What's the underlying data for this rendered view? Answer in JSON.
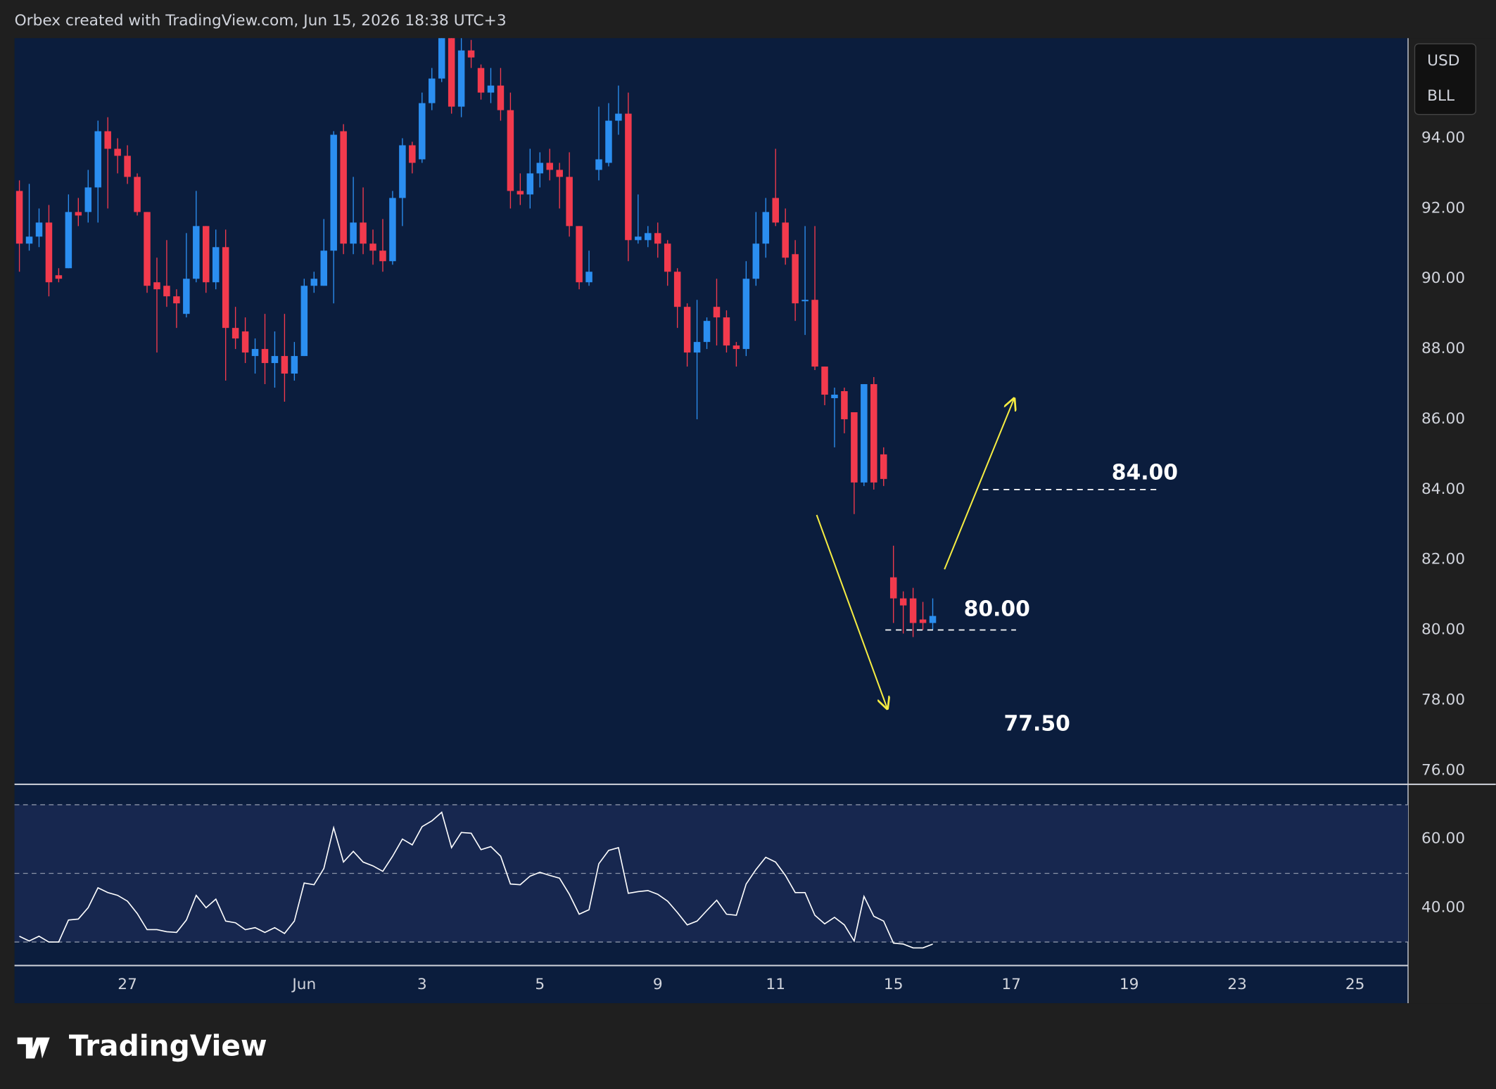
{
  "header": "Orbex created with TradingView.com, Jun 15, 2026 18:38 UTC+3",
  "currency": [
    "USD",
    "BLL"
  ],
  "logo": "TradingView",
  "chart_data": [
    {
      "type": "candlestick",
      "x": [
        0,
        1,
        2,
        3,
        4,
        5,
        6,
        7,
        8,
        9,
        10,
        11,
        12,
        13,
        14,
        15,
        16,
        17,
        18,
        19,
        20,
        21,
        22,
        23,
        24,
        25,
        26,
        27,
        28,
        29,
        30,
        31,
        32,
        33,
        34,
        35,
        36,
        37,
        38,
        39,
        40,
        41,
        42,
        43,
        44,
        45,
        46,
        47,
        48,
        49,
        50,
        51,
        52,
        53,
        54,
        55,
        56,
        57,
        58,
        59,
        60,
        61,
        62,
        63,
        64,
        65,
        66,
        67,
        68,
        69,
        70,
        71,
        72,
        73,
        74,
        75,
        76,
        77,
        78,
        79,
        80,
        81,
        82,
        83,
        84,
        85,
        86,
        87,
        88,
        89,
        90,
        91,
        92,
        93
      ],
      "open": [
        92.5,
        91.0,
        91.2,
        91.6,
        90.1,
        90.3,
        91.9,
        91.9,
        92.6,
        94.2,
        93.7,
        93.5,
        92.9,
        91.9,
        89.9,
        89.8,
        89.5,
        89.0,
        90.0,
        91.5,
        89.9,
        90.9,
        88.6,
        88.5,
        87.8,
        88.0,
        87.6,
        87.8,
        87.3,
        87.8,
        89.8,
        89.8,
        90.8,
        94.2,
        91.0,
        91.6,
        91.0,
        90.8,
        90.5,
        92.3,
        93.8,
        93.4,
        95.0,
        95.7,
        97.0,
        94.9,
        96.5,
        96.0,
        95.3,
        95.5,
        94.8,
        92.5,
        92.4,
        93.0,
        93.3,
        93.1,
        92.9,
        91.5,
        89.9,
        93.1,
        93.3,
        94.5,
        94.7,
        91.1,
        91.1,
        91.3,
        91.0,
        90.2,
        89.2,
        87.9,
        88.2,
        89.2,
        88.9,
        88.1,
        88.0,
        90.0,
        91.0,
        92.3,
        91.6,
        90.7,
        89.4,
        89.4,
        87.5,
        86.6,
        86.8,
        86.2,
        84.2,
        87.0,
        85.0,
        81.5,
        80.9,
        80.9,
        80.3,
        80.2
      ],
      "high": [
        92.8,
        92.7,
        92.0,
        92.1,
        90.3,
        92.4,
        92.3,
        93.1,
        94.5,
        94.6,
        94.0,
        93.8,
        93.0,
        91.9,
        90.6,
        91.1,
        89.7,
        91.3,
        92.5,
        91.5,
        91.4,
        91.4,
        89.2,
        88.9,
        88.3,
        89.0,
        88.5,
        89.0,
        88.2,
        90.0,
        90.2,
        91.7,
        94.2,
        94.4,
        92.9,
        92.6,
        91.4,
        91.7,
        92.5,
        94.0,
        93.9,
        95.3,
        96.0,
        97.2,
        97.0,
        96.9,
        96.8,
        96.1,
        96.0,
        96.0,
        95.3,
        93.0,
        93.7,
        93.6,
        93.7,
        93.3,
        93.6,
        91.5,
        90.8,
        94.9,
        95.0,
        95.5,
        95.3,
        92.4,
        91.5,
        91.6,
        91.1,
        90.3,
        89.3,
        89.4,
        88.9,
        90.0,
        89.1,
        88.2,
        90.5,
        91.9,
        92.3,
        93.7,
        92.0,
        91.1,
        91.5,
        91.5,
        87.5,
        86.9,
        86.9,
        86.2,
        87.0,
        87.2,
        85.2,
        82.4,
        81.1,
        81.2,
        80.8,
        80.9
      ],
      "low": [
        90.2,
        90.8,
        90.9,
        89.5,
        89.9,
        90.3,
        91.5,
        91.6,
        91.6,
        92.0,
        93.0,
        92.7,
        91.8,
        89.6,
        87.9,
        89.2,
        88.6,
        88.9,
        89.9,
        89.6,
        89.7,
        87.1,
        88.0,
        87.6,
        87.3,
        87.0,
        86.9,
        86.5,
        87.1,
        87.8,
        89.6,
        89.8,
        89.3,
        90.7,
        90.7,
        90.7,
        90.4,
        90.2,
        90.4,
        91.5,
        93.0,
        93.3,
        94.8,
        95.6,
        94.7,
        94.6,
        96.0,
        95.1,
        95.0,
        94.5,
        92.0,
        92.1,
        92.0,
        92.6,
        92.8,
        92.0,
        91.2,
        89.7,
        89.8,
        92.8,
        93.2,
        94.1,
        90.5,
        91.0,
        90.9,
        90.6,
        89.8,
        88.6,
        87.5,
        86.0,
        88.0,
        88.1,
        87.9,
        87.5,
        87.8,
        89.8,
        90.6,
        91.5,
        90.4,
        88.8,
        88.4,
        87.4,
        86.4,
        85.2,
        85.6,
        83.3,
        84.1,
        84.0,
        84.1,
        80.2,
        79.9,
        79.8,
        80.0,
        80.0
      ],
      "close": [
        91.0,
        91.2,
        91.6,
        89.9,
        90.0,
        91.9,
        91.8,
        92.6,
        94.2,
        93.7,
        93.5,
        92.9,
        91.9,
        89.8,
        89.7,
        89.5,
        89.3,
        90.0,
        91.5,
        89.9,
        90.9,
        88.6,
        88.3,
        87.9,
        88.0,
        87.6,
        87.8,
        87.3,
        87.8,
        89.8,
        90.0,
        90.8,
        94.1,
        91.0,
        91.6,
        91.0,
        90.8,
        90.5,
        92.3,
        93.8,
        93.3,
        95.0,
        95.7,
        97.0,
        94.9,
        96.5,
        96.3,
        95.3,
        95.5,
        94.8,
        92.5,
        92.4,
        93.0,
        93.3,
        93.1,
        92.9,
        91.5,
        89.9,
        90.2,
        93.4,
        94.5,
        94.7,
        91.1,
        91.2,
        91.3,
        91.0,
        90.2,
        89.2,
        87.9,
        88.2,
        88.8,
        88.9,
        88.1,
        88.0,
        90.0,
        91.0,
        91.9,
        91.6,
        90.6,
        89.3,
        89.4,
        87.5,
        86.7,
        86.7,
        86.0,
        84.2,
        87.0,
        84.2,
        84.3,
        80.9,
        80.7,
        80.2,
        80.2,
        80.4
      ],
      "up_color": "#2b8ef0",
      "down_color": "#f23a4d",
      "xlim": [
        -0.5,
        141.4
      ],
      "xticks": [
        {
          "value": 11,
          "label": "27"
        },
        {
          "value": 29,
          "label": "Jun"
        },
        {
          "value": 41,
          "label": "3"
        },
        {
          "value": 53,
          "label": "5"
        },
        {
          "value": 65,
          "label": "9"
        },
        {
          "value": 77,
          "label": "11"
        },
        {
          "value": 89,
          "label": "15"
        },
        {
          "value": 101,
          "label": "17"
        },
        {
          "value": 113,
          "label": "19"
        },
        {
          "value": 124,
          "label": "23"
        },
        {
          "value": 136,
          "label": "25"
        }
      ],
      "ylim": [
        75.62,
        96.85
      ],
      "yticks": [
        {
          "value": 76,
          "label": "76.00"
        },
        {
          "value": 78,
          "label": "78.00"
        },
        {
          "value": 80,
          "label": "80.00"
        },
        {
          "value": 82,
          "label": "82.00"
        },
        {
          "value": 84,
          "label": "84.00"
        },
        {
          "value": 86,
          "label": "86.00"
        },
        {
          "value": 88,
          "label": "88.00"
        },
        {
          "value": 90,
          "label": "90.00"
        },
        {
          "value": 92,
          "label": "92.00"
        },
        {
          "value": 94,
          "label": "94.00"
        }
      ],
      "grid": false,
      "annotations": [
        {
          "value": 84,
          "label": "84.00",
          "line": true
        },
        {
          "value": 80,
          "label": "80.00",
          "line": true
        },
        {
          "value": 77.5,
          "label": "77.50",
          "line": false
        }
      ]
    },
    {
      "type": "line",
      "values": [
        31.7,
        30.3,
        31.7,
        30,
        30,
        36.4,
        36.7,
        40,
        45.8,
        44.4,
        43.6,
        41.9,
        38.3,
        33.6,
        33.6,
        33,
        32.8,
        36.4,
        43.6,
        40,
        42.5,
        36.1,
        35.6,
        33.6,
        34.2,
        32.8,
        34.2,
        32.5,
        36.1,
        47.2,
        46.7,
        51.4,
        63.3,
        53.3,
        56.4,
        53.3,
        52.2,
        50.6,
        55,
        60,
        58.3,
        63.6,
        65.3,
        67.8,
        57.5,
        61.9,
        61.7,
        56.9,
        57.8,
        55,
        46.9,
        46.7,
        49.2,
        50.3,
        49.4,
        48.6,
        43.9,
        38.1,
        39.4,
        52.8,
        56.7,
        57.5,
        44.2,
        44.7,
        45,
        43.9,
        41.9,
        38.6,
        35,
        36.1,
        39.2,
        42.2,
        38.1,
        37.8,
        46.9,
        51.1,
        54.7,
        53.3,
        49.4,
        44.4,
        44.4,
        37.8,
        35.3,
        37.2,
        35,
        30.3,
        43.3,
        37.5,
        36.1,
        29.7,
        29.4,
        28.3,
        28.3,
        29.4
      ],
      "color": "#ffffff",
      "ylim": [
        23.3,
        75.8
      ],
      "yticks": [
        {
          "value": 40,
          "label": "40.00"
        },
        {
          "value": 60,
          "label": "60.00"
        }
      ],
      "band": [
        30,
        70
      ],
      "levels": [
        30,
        50,
        70
      ],
      "band_color": "#17274f"
    }
  ]
}
